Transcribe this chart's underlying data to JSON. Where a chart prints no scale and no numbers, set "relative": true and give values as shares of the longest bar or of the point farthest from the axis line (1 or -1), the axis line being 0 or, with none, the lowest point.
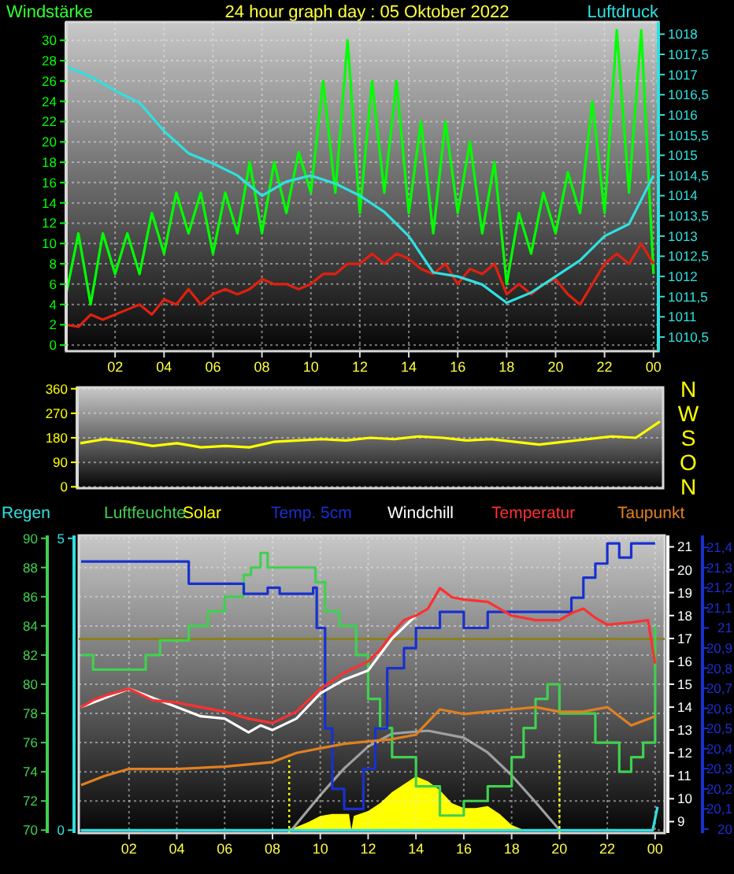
{
  "chart_data": [
    {
      "type": "line",
      "title": "24 hour graph day : 05 Oktober 2022",
      "ylabel": "Windstärke",
      "y2label": "Luftdruck",
      "grid": true,
      "x": [
        "2022-10-05T00:00",
        "2022-10-05T00:30",
        "2022-10-05T01:00",
        "2022-10-05T01:30",
        "2022-10-05T02:00",
        "2022-10-05T02:30",
        "2022-10-05T03:00",
        "2022-10-05T03:30",
        "2022-10-05T04:00",
        "2022-10-05T04:30",
        "2022-10-05T05:00",
        "2022-10-05T05:30",
        "2022-10-05T06:00",
        "2022-10-05T06:30",
        "2022-10-05T07:00",
        "2022-10-05T07:30",
        "2022-10-05T08:00",
        "2022-10-05T08:30",
        "2022-10-05T09:00",
        "2022-10-05T09:30",
        "2022-10-05T10:00",
        "2022-10-05T10:30",
        "2022-10-05T11:00",
        "2022-10-05T11:30",
        "2022-10-05T12:00",
        "2022-10-05T12:30",
        "2022-10-05T13:00",
        "2022-10-05T13:30",
        "2022-10-05T14:00",
        "2022-10-05T14:30",
        "2022-10-05T15:00",
        "2022-10-05T15:30",
        "2022-10-05T16:00",
        "2022-10-05T16:30",
        "2022-10-05T17:00",
        "2022-10-05T17:30",
        "2022-10-05T18:00",
        "2022-10-05T18:30",
        "2022-10-05T19:00",
        "2022-10-05T19:30",
        "2022-10-05T20:00",
        "2022-10-05T20:30",
        "2022-10-05T21:00",
        "2022-10-05T21:30",
        "2022-10-05T22:00",
        "2022-10-05T22:30",
        "2022-10-05T23:00",
        "2022-10-05T23:30",
        "2022-10-06T00:00"
      ],
      "xlim": [
        "2022-10-05T00:00",
        "2022-10-06T00:12"
      ],
      "xticks": [
        {
          "value": "2022-10-05T02:00",
          "label": "02"
        },
        {
          "value": "2022-10-05T04:00",
          "label": "04"
        },
        {
          "value": "2022-10-05T06:00",
          "label": "06"
        },
        {
          "value": "2022-10-05T08:00",
          "label": "08"
        },
        {
          "value": "2022-10-05T10:00",
          "label": "10"
        },
        {
          "value": "2022-10-05T12:00",
          "label": "12"
        },
        {
          "value": "2022-10-05T14:00",
          "label": "14"
        },
        {
          "value": "2022-10-05T16:00",
          "label": "16"
        },
        {
          "value": "2022-10-05T18:00",
          "label": "18"
        },
        {
          "value": "2022-10-05T20:00",
          "label": "20"
        },
        {
          "value": "2022-10-05T22:00",
          "label": "22"
        },
        {
          "value": "2022-10-06T00:00",
          "label": "00"
        }
      ],
      "ylim": [
        -0.6,
        31.8
      ],
      "yticks": [
        0,
        2,
        4,
        6,
        8,
        10,
        12,
        14,
        16,
        18,
        20,
        22,
        24,
        26,
        28,
        30
      ],
      "y2lim": [
        1010.15,
        1018.3
      ],
      "y2ticks": [
        {
          "value": 1010.5,
          "label": "1010,5"
        },
        1011,
        {
          "value": 1011.5,
          "label": "1011,5"
        },
        1012,
        {
          "value": 1012.5,
          "label": "1012,5"
        },
        1013,
        {
          "value": 1013.5,
          "label": "1013,5"
        },
        1014,
        {
          "value": 1014.5,
          "label": "1014,5"
        },
        1015,
        {
          "value": 1015.5,
          "label": "1015,5"
        },
        1016,
        {
          "value": 1016.5,
          "label": "1016,5"
        },
        1017,
        {
          "value": 1017.5,
          "label": "1017,5"
        },
        1018
      ],
      "series": [
        {
          "color": "#00ff00",
          "values": [
            5,
            11,
            4,
            11,
            7,
            11,
            7,
            13,
            9,
            15,
            11,
            15,
            9,
            15,
            11,
            18,
            11,
            18,
            13,
            19,
            15,
            26,
            15,
            30,
            13,
            26,
            15,
            26,
            13,
            22,
            11,
            22,
            13,
            20,
            11,
            18,
            6,
            13,
            9,
            15,
            11,
            17,
            13,
            24,
            13,
            31,
            15,
            31,
            7
          ]
        },
        {
          "color": "#e02010",
          "values": [
            2,
            1.8,
            3,
            2.5,
            3,
            3.5,
            4,
            3,
            4.5,
            4,
            5.5,
            4,
            5,
            5.5,
            5,
            5.5,
            6.5,
            6,
            6,
            5.5,
            6,
            7,
            7,
            8,
            8,
            9,
            8,
            9,
            8.5,
            7.5,
            7,
            8,
            6,
            7.5,
            7,
            8,
            5,
            6,
            5,
            6,
            6.5,
            5,
            4,
            6,
            8,
            9,
            8,
            10,
            8
          ]
        },
        {
          "color": "#30e0e0",
          "axis": "y2",
          "x": [
            "2022-10-05T00:00",
            "2022-10-05T01:00",
            "2022-10-05T02:00",
            "2022-10-05T03:00",
            "2022-10-05T04:00",
            "2022-10-05T05:00",
            "2022-10-05T06:00",
            "2022-10-05T07:00",
            "2022-10-05T08:00",
            "2022-10-05T09:00",
            "2022-10-05T10:00",
            "2022-10-05T11:00",
            "2022-10-05T12:00",
            "2022-10-05T13:00",
            "2022-10-05T14:00",
            "2022-10-05T15:00",
            "2022-10-05T16:00",
            "2022-10-05T17:00",
            "2022-10-05T18:00",
            "2022-10-05T19:00",
            "2022-10-05T20:00",
            "2022-10-05T21:00",
            "2022-10-05T22:00",
            "2022-10-05T23:00",
            "2022-10-06T00:00"
          ],
          "values": [
            1017.2,
            1016.95,
            1016.6,
            1016.3,
            1015.6,
            1015.05,
            1014.8,
            1014.5,
            1014.0,
            1014.35,
            1014.5,
            1014.3,
            1014.0,
            1013.6,
            1013.0,
            1012.1,
            1012.0,
            1011.8,
            1011.35,
            1011.6,
            1012.0,
            1012.4,
            1013.0,
            1013.3,
            1014.5
          ]
        }
      ]
    },
    {
      "type": "line",
      "grid": "y",
      "annotations": [
        "N",
        "W",
        "S",
        "O",
        "N"
      ],
      "categories": [
        null,
        null,
        null,
        null,
        null,
        null,
        null,
        null,
        null,
        null,
        null,
        null,
        null,
        null,
        null,
        null,
        null,
        null,
        null,
        null,
        null,
        null,
        null,
        null,
        null
      ],
      "ylim": [
        -5,
        365
      ],
      "yticks": [
        0,
        90,
        180,
        270,
        360
      ],
      "series": [
        {
          "color": "#ffff00",
          "values": [
            160,
            175,
            165,
            150,
            160,
            145,
            150,
            145,
            165,
            170,
            175,
            170,
            180,
            175,
            185,
            180,
            170,
            175,
            165,
            155,
            165,
            175,
            185,
            180,
            240
          ]
        }
      ]
    },
    {
      "type": "line",
      "legend": "top",
      "tick_labels": "y",
      "xlim": [
        "2022-10-04T23:54",
        "2022-10-06T00:24"
      ],
      "ylim": [
        -0.05,
        5.05
      ],
      "yticks": [
        0,
        5
      ],
      "series": [
        {
          "name": "Regen",
          "color": "#30e0e0",
          "x": [
            "2022-10-05T00:00",
            "2022-10-05T23:54",
            "2022-10-06T00:06"
          ],
          "values": [
            0,
            0,
            0.4
          ]
        }
      ]
    },
    {
      "type": "line",
      "grid": true,
      "legend": "top",
      "xlim": [
        "2022-10-04T23:54",
        "2022-10-06T00:24"
      ],
      "xticks": [
        {
          "value": "2022-10-05T02:00",
          "label": "02"
        },
        {
          "value": "2022-10-05T04:00",
          "label": "04"
        },
        {
          "value": "2022-10-05T06:00",
          "label": "06"
        },
        {
          "value": "2022-10-05T08:00",
          "label": "08"
        },
        {
          "value": "2022-10-05T10:00",
          "label": "10"
        },
        {
          "value": "2022-10-05T12:00",
          "label": "12"
        },
        {
          "value": "2022-10-05T14:00",
          "label": "14"
        },
        {
          "value": "2022-10-05T16:00",
          "label": "16"
        },
        {
          "value": "2022-10-05T18:00",
          "label": "18"
        },
        {
          "value": "2022-10-05T20:00",
          "label": "20"
        },
        {
          "value": "2022-10-05T22:00",
          "label": "22"
        },
        {
          "value": "2022-10-06T00:00",
          "label": "00"
        }
      ],
      "ylim": [
        69.8,
        90.2
      ],
      "yticks": [
        70,
        72,
        74,
        76,
        78,
        80,
        82,
        84,
        86,
        88,
        90
      ],
      "y2lim": [
        8.5,
        21.5
      ],
      "y2ticks": [
        9,
        10,
        11,
        12,
        13,
        14,
        15,
        16,
        17,
        18,
        19,
        20,
        21
      ],
      "y3lim": [
        19.98,
        21.46
      ],
      "y3ticks": [
        20,
        {
          "value": 20.1,
          "label": "20,1"
        },
        {
          "value": 20.2,
          "label": "20,2"
        },
        {
          "value": 20.3,
          "label": "20,3"
        },
        {
          "value": 20.4,
          "label": "20,4"
        },
        {
          "value": 20.5,
          "label": "20,5"
        },
        {
          "value": 20.6,
          "label": "20,6"
        },
        {
          "value": 20.7,
          "label": "20,7"
        },
        {
          "value": 20.8,
          "label": "20,8"
        },
        {
          "value": 20.9,
          "label": "20,9"
        },
        21,
        {
          "value": 21.1,
          "label": "21,1"
        },
        {
          "value": 21.2,
          "label": "21,2"
        },
        {
          "value": 21.3,
          "label": "21,3"
        },
        {
          "value": 21.4,
          "label": "21,4"
        }
      ],
      "ref_lines": [
        {
          "axis": "y",
          "value": 83.1,
          "color": "#8a8020"
        },
        {
          "axis": "x",
          "value": "2022-10-05T08:42",
          "color": "#ffff00",
          "line_style": "dotted"
        },
        {
          "axis": "x",
          "value": "2022-10-05T20:00",
          "color": "#ffff00",
          "line_style": "dotted"
        }
      ],
      "series": [
        {
          "name": "Luftfeuchte",
          "type": "step",
          "color": "#40d050",
          "x": [
            "2022-10-05T00:00",
            "2022-10-05T00:30",
            "2022-10-05T02:42",
            "2022-10-05T03:18",
            "2022-10-05T04:30",
            "2022-10-05T05:18",
            "2022-10-05T06:00",
            "2022-10-05T06:48",
            "2022-10-05T07:06",
            "2022-10-05T07:30",
            "2022-10-05T07:48",
            "2022-10-05T09:48",
            "2022-10-05T10:12",
            "2022-10-05T10:48",
            "2022-10-05T11:30",
            "2022-10-05T12:00",
            "2022-10-05T12:30",
            "2022-10-05T13:00",
            "2022-10-05T14:00",
            "2022-10-05T15:00",
            "2022-10-05T16:00",
            "2022-10-05T17:00",
            "2022-10-05T18:00",
            "2022-10-05T18:30",
            "2022-10-05T19:00",
            "2022-10-05T19:30",
            "2022-10-05T20:00",
            "2022-10-05T21:30",
            "2022-10-05T22:30",
            "2022-10-05T23:00",
            "2022-10-05T23:30",
            "2022-10-06T00:00"
          ],
          "values": [
            82,
            81,
            82,
            83,
            84,
            85,
            86,
            87.5,
            88,
            89,
            88,
            87,
            85,
            84,
            82,
            79,
            77,
            75,
            73,
            71,
            72,
            73,
            75,
            77,
            79,
            80,
            78,
            76,
            74,
            75,
            76,
            84
          ]
        },
        {
          "name": "Temp. 5cm",
          "type": "step",
          "color": "#1830d0",
          "axis": "y3",
          "x": [
            "2022-10-05T00:00",
            "2022-10-05T04:30",
            "2022-10-05T06:48",
            "2022-10-05T07:48",
            "2022-10-05T08:18",
            "2022-10-05T09:42",
            "2022-10-05T09:51",
            "2022-10-05T10:12",
            "2022-10-05T10:30",
            "2022-10-05T11:00",
            "2022-10-05T11:48",
            "2022-10-05T12:18",
            "2022-10-05T12:48",
            "2022-10-05T13:30",
            "2022-10-05T14:00",
            "2022-10-05T15:00",
            "2022-10-05T16:00",
            "2022-10-05T17:00",
            "2022-10-05T20:30",
            "2022-10-05T21:00",
            "2022-10-05T21:30",
            "2022-10-05T22:00",
            "2022-10-05T22:30",
            "2022-10-05T23:00",
            "2022-10-06T00:00"
          ],
          "values": [
            21.33,
            21.22,
            21.17,
            21.2,
            21.17,
            21.2,
            21.0,
            20.5,
            20.2,
            20.1,
            20.3,
            20.5,
            20.8,
            20.9,
            21.0,
            21.08,
            21.0,
            21.08,
            21.15,
            21.25,
            21.32,
            21.42,
            21.35,
            21.42,
            21.42
          ]
        },
        {
          "name": "Windchill",
          "color": "#ffffff",
          "axis": "y2",
          "x": [
            "2022-10-05T00:00",
            "2022-10-05T02:00",
            "2022-10-05T04:00",
            "2022-10-05T05:00",
            "2022-10-05T06:00",
            "2022-10-05T07:00",
            "2022-10-05T07:30",
            "2022-10-05T08:00",
            "2022-10-05T09:00",
            "2022-10-05T10:00",
            "2022-10-05T11:00",
            "2022-10-05T12:00",
            "2022-10-05T13:00",
            "2022-10-05T14:00"
          ],
          "values": [
            14,
            14.8,
            14,
            13.6,
            13.5,
            12.9,
            13.2,
            13.0,
            13.5,
            14.6,
            15.2,
            15.6,
            17.0,
            18.0
          ]
        },
        {
          "name": "Temperatur",
          "color": "#ff3030",
          "axis": "y2",
          "x": [
            "2022-10-05T00:00",
            "2022-10-05T00:30",
            "2022-10-05T01:00",
            "2022-10-05T02:00",
            "2022-10-05T03:00",
            "2022-10-05T04:00",
            "2022-10-05T05:00",
            "2022-10-05T06:00",
            "2022-10-05T07:00",
            "2022-10-05T08:00",
            "2022-10-05T09:00",
            "2022-10-05T10:00",
            "2022-10-05T11:00",
            "2022-10-05T12:00",
            "2022-10-05T12:30",
            "2022-10-05T13:00",
            "2022-10-05T13:30",
            "2022-10-05T14:00",
            "2022-10-05T14:30",
            "2022-10-05T15:00",
            "2022-10-05T15:30",
            "2022-10-05T16:00",
            "2022-10-05T17:00",
            "2022-10-05T18:00",
            "2022-10-05T19:00",
            "2022-10-05T20:00",
            "2022-10-05T20:30",
            "2022-10-05T21:00",
            "2022-10-05T21:30",
            "2022-10-05T22:00",
            "2022-10-05T23:00",
            "2022-10-05T23:42",
            "2022-10-06T00:00"
          ],
          "values": [
            14,
            14.3,
            14.5,
            14.8,
            14.3,
            14.2,
            14.0,
            13.8,
            13.5,
            13.3,
            13.8,
            14.8,
            15.5,
            16.0,
            16.5,
            17.2,
            17.8,
            18.0,
            18.3,
            19.2,
            18.8,
            18.7,
            18.6,
            18.0,
            17.8,
            17.8,
            18.1,
            18.3,
            17.9,
            17.6,
            17.7,
            17.8,
            15.9
          ]
        },
        {
          "name": "Taupunkt",
          "color": "#e08020",
          "axis": "y2",
          "x": [
            "2022-10-05T00:00",
            "2022-10-05T01:00",
            "2022-10-05T02:00",
            "2022-10-05T04:00",
            "2022-10-05T06:00",
            "2022-10-05T08:00",
            "2022-10-05T09:00",
            "2022-10-05T10:00",
            "2022-10-05T11:00",
            "2022-10-05T12:00",
            "2022-10-05T13:00",
            "2022-10-05T14:00",
            "2022-10-05T15:00",
            "2022-10-05T16:00",
            "2022-10-05T17:00",
            "2022-10-05T18:00",
            "2022-10-05T19:00",
            "2022-10-05T20:00",
            "2022-10-05T21:00",
            "2022-10-05T22:00",
            "2022-10-05T23:00",
            "2022-10-06T00:00"
          ],
          "values": [
            10.6,
            11.0,
            11.3,
            11.3,
            11.4,
            11.6,
            12.0,
            12.2,
            12.4,
            12.5,
            12.6,
            12.8,
            13.9,
            13.7,
            13.8,
            13.9,
            14.0,
            13.8,
            13.8,
            14.0,
            13.2,
            13.6
          ]
        }
      ]
    },
    {
      "type": "line",
      "legend": "top",
      "relative": true,
      "tick_labels": false,
      "xlim": [
        "2022-10-04T23:54",
        "2022-10-06T00:24"
      ],
      "series": [
        {
          "name": "Solar",
          "type": "area",
          "color": "#ffff00",
          "x": [
            "2022-10-05T00:00",
            "2022-10-05T08:30",
            "2022-10-05T09:00",
            "2022-10-05T09:30",
            "2022-10-05T10:00",
            "2022-10-05T10:30",
            "2022-10-05T11:00",
            "2022-10-05T11:12",
            "2022-10-05T11:18",
            "2022-10-05T11:24",
            "2022-10-05T12:00",
            "2022-10-05T12:30",
            "2022-10-05T13:00",
            "2022-10-05T13:30",
            "2022-10-05T14:00",
            "2022-10-05T14:30",
            "2022-10-05T15:00",
            "2022-10-05T15:30",
            "2022-10-05T16:00",
            "2022-10-05T16:30",
            "2022-10-05T17:00",
            "2022-10-05T17:30",
            "2022-10-05T18:00",
            "2022-10-05T18:30",
            "2022-10-06T00:00"
          ],
          "values": [
            0,
            0,
            0.03,
            0.08,
            0.14,
            0.16,
            0.16,
            0.16,
            0,
            0.14,
            0.19,
            0.27,
            0.38,
            0.46,
            0.54,
            0.49,
            0.4,
            0.27,
            0.22,
            0.22,
            0.24,
            0.16,
            0.05,
            0,
            0
          ]
        },
        {
          "color": "#a0a0a0",
          "x": [
            "2022-10-05T08:48",
            "2022-10-05T10:00",
            "2022-10-05T11:00",
            "2022-10-05T12:00",
            "2022-10-05T13:00",
            "2022-10-05T14:30",
            "2022-10-05T16:00",
            "2022-10-05T17:00",
            "2022-10-05T18:00",
            "2022-10-05T19:00",
            "2022-10-05T20:00"
          ],
          "values": [
            0,
            0.35,
            0.62,
            0.84,
            0.97,
            1,
            0.93,
            0.78,
            0.55,
            0.28,
            0
          ]
        }
      ]
    }
  ]
}
